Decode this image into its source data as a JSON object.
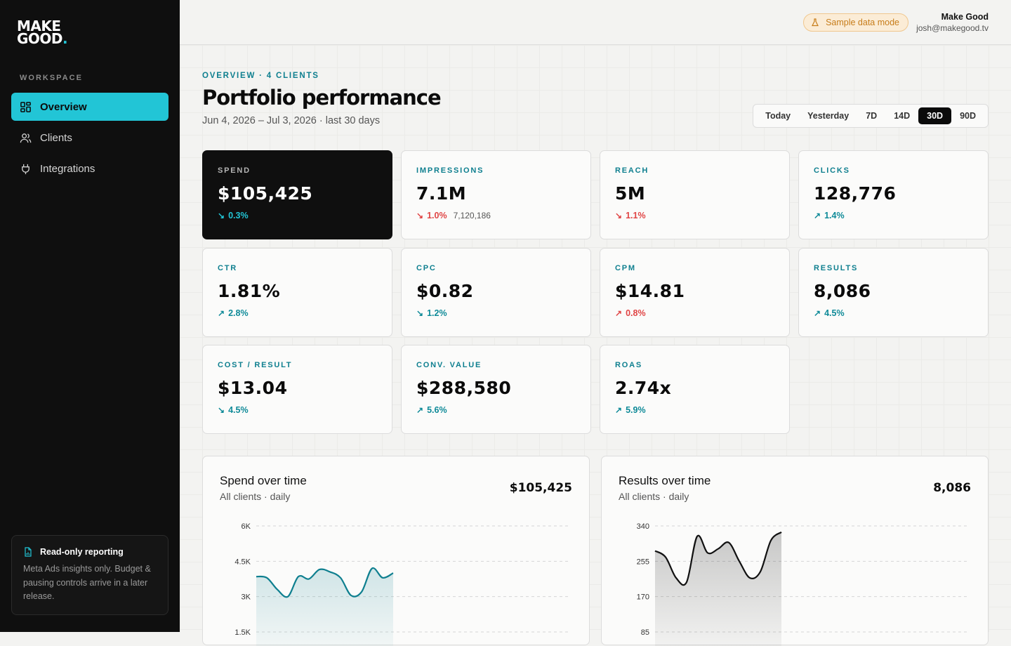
{
  "brand": {
    "line1": "MAKE",
    "line2": "GOOD",
    "dot": "."
  },
  "sidebar": {
    "section_label": "WORKSPACE",
    "items": [
      {
        "label": "Overview",
        "icon": "grid-icon",
        "active": true
      },
      {
        "label": "Clients",
        "icon": "users-icon",
        "active": false
      },
      {
        "label": "Integrations",
        "icon": "plug-icon",
        "active": false
      }
    ],
    "info": {
      "title": "Read-only reporting",
      "text": "Meta Ads insights only. Budget & pausing controls arrive in a later release."
    }
  },
  "topbar": {
    "badge": "Sample data mode",
    "user_name": "Make Good",
    "user_email": "josh@makegood.tv"
  },
  "header": {
    "eyebrow": "OVERVIEW · 4 CLIENTS",
    "title": "Portfolio performance",
    "date_range": "Jun 4, 2026 – Jul 3, 2026 · last 30 days",
    "ranges": [
      "Today",
      "Yesterday",
      "7D",
      "14D",
      "30D",
      "90D"
    ],
    "active_range": "30D"
  },
  "kpis": [
    {
      "label": "SPEND",
      "value": "$105,425",
      "delta": "0.3%",
      "dir": "down",
      "tone": "good",
      "dark": true
    },
    {
      "label": "IMPRESSIONS",
      "value": "7.1M",
      "delta": "1.0%",
      "dir": "down",
      "tone": "bad",
      "sub": "7,120,186"
    },
    {
      "label": "REACH",
      "value": "5M",
      "delta": "1.1%",
      "dir": "down",
      "tone": "bad"
    },
    {
      "label": "CLICKS",
      "value": "128,776",
      "delta": "1.4%",
      "dir": "up",
      "tone": "good"
    },
    {
      "label": "CTR",
      "value": "1.81%",
      "delta": "2.8%",
      "dir": "up",
      "tone": "good"
    },
    {
      "label": "CPC",
      "value": "$0.82",
      "delta": "1.2%",
      "dir": "down",
      "tone": "good"
    },
    {
      "label": "CPM",
      "value": "$14.81",
      "delta": "0.8%",
      "dir": "up",
      "tone": "bad"
    },
    {
      "label": "RESULTS",
      "value": "8,086",
      "delta": "4.5%",
      "dir": "up",
      "tone": "good"
    },
    {
      "label": "COST / RESULT",
      "value": "$13.04",
      "delta": "4.5%",
      "dir": "down",
      "tone": "good"
    },
    {
      "label": "CONV. VALUE",
      "value": "$288,580",
      "delta": "5.6%",
      "dir": "up",
      "tone": "good"
    },
    {
      "label": "ROAS",
      "value": "2.74x",
      "delta": "5.9%",
      "dir": "up",
      "tone": "good"
    }
  ],
  "colors": {
    "accent": "#22c5d6",
    "teal_text": "#0e7f8f",
    "bad": "#e04545",
    "warning": "#c77d1a"
  },
  "charts": {
    "spend": {
      "title": "Spend over time",
      "subtitle": "All clients · daily",
      "total": "$105,425"
    },
    "results": {
      "title": "Results over time",
      "subtitle": "All clients · daily",
      "total": "8,086"
    }
  },
  "chart_data": [
    {
      "type": "area",
      "title": "Spend over time",
      "y_ticks": [
        "6K",
        "4.5K",
        "3K",
        "1.5K"
      ],
      "ylim": [
        1500,
        6000
      ],
      "values": [
        3850,
        3800,
        3300,
        3000,
        3850,
        3750,
        4150,
        4050,
        3800,
        3050,
        3200,
        4200,
        3800,
        4000
      ],
      "color": "#0e7f8f"
    },
    {
      "type": "area",
      "title": "Results over time",
      "y_ticks": [
        "340",
        "255",
        "170",
        "85"
      ],
      "ylim": [
        85,
        340
      ],
      "values": [
        280,
        265,
        215,
        205,
        315,
        275,
        285,
        300,
        255,
        215,
        230,
        305,
        325
      ],
      "color": "#111111"
    }
  ]
}
